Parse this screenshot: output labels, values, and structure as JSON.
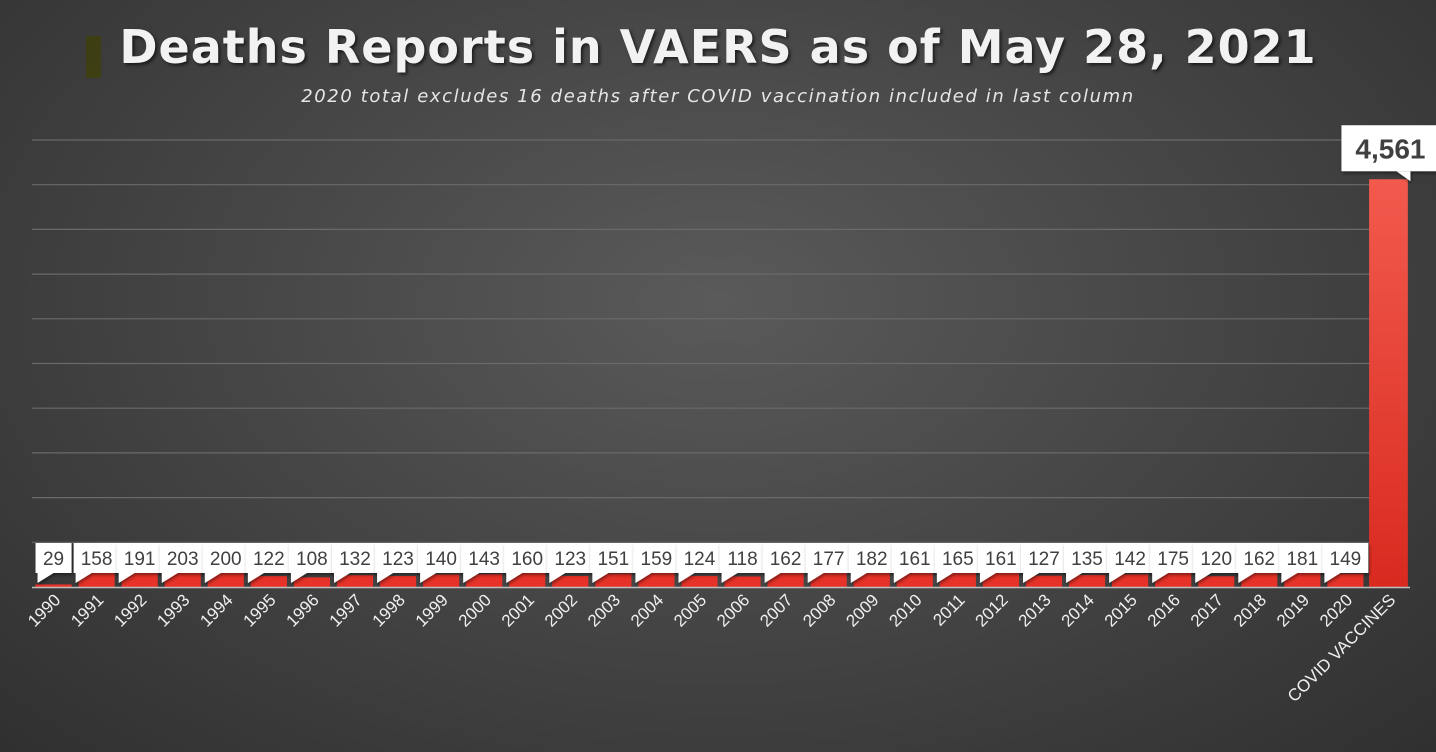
{
  "title": "Deaths Reports in VAERS as of May 28, 2021",
  "subtitle": "2020 total excludes 16 deaths after COVID vaccination included in last column",
  "colors": {
    "bar": "#e63228",
    "bar_highlight": "#f25a4d",
    "label_bg": "#ffffff",
    "label_text": "#404040",
    "gridline": "#6a6a6a",
    "axis": "#bfbfbf"
  },
  "chart_data": {
    "type": "bar",
    "title": "Deaths Reports in VAERS as of May 28, 2021",
    "subtitle": "2020 total excludes 16 deaths after COVID vaccination included in last column",
    "categories": [
      "1990",
      "1991",
      "1992",
      "1993",
      "1994",
      "1995",
      "1996",
      "1997",
      "1998",
      "1999",
      "2000",
      "2001",
      "2002",
      "2003",
      "2004",
      "2005",
      "2006",
      "2007",
      "2008",
      "2009",
      "2010",
      "2011",
      "2012",
      "2013",
      "2014",
      "2015",
      "2016",
      "2017",
      "2018",
      "2019",
      "2020",
      "COVID VACCINES"
    ],
    "values": [
      29,
      158,
      191,
      203,
      200,
      122,
      108,
      132,
      123,
      140,
      143,
      160,
      123,
      151,
      159,
      124,
      118,
      162,
      177,
      182,
      161,
      165,
      161,
      127,
      135,
      142,
      175,
      120,
      162,
      181,
      149,
      4561
    ],
    "data_labels": [
      "29",
      "158",
      "191",
      "203",
      "200",
      "122",
      "108",
      "132",
      "123",
      "140",
      "143",
      "160",
      "123",
      "151",
      "159",
      "124",
      "118",
      "162",
      "177",
      "182",
      "161",
      "165",
      "161",
      "127",
      "135",
      "142",
      "175",
      "120",
      "162",
      "181",
      "149",
      "4,561"
    ],
    "xlabel": "",
    "ylabel": "",
    "ylim": [
      0,
      5000
    ],
    "grid": true,
    "legend": "none"
  }
}
